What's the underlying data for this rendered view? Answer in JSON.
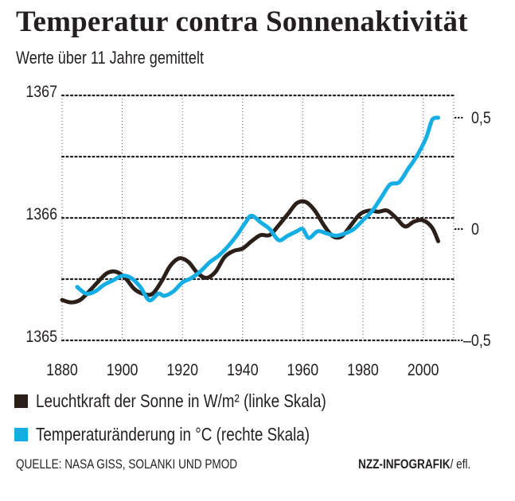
{
  "header": {
    "title": "Temperatur contra Sonnenaktivität",
    "subtitle": "Werte über 11 Jahre gemittelt"
  },
  "legend": [
    {
      "label": "Leuchtkraft der Sonne in W/m² (linke Skala)",
      "color": "#2b2019"
    },
    {
      "label": "Temperaturänderung in °C (rechte Skala)",
      "color": "#14aee5"
    }
  ],
  "footer": {
    "source": "QUELLE:  NASA GISS, SOLANKI UND PMOD",
    "credit_bold": "NZZ-INFOGRAFIK",
    "credit_suffix": "/ efl."
  },
  "chart_data": {
    "type": "line",
    "title": "Temperatur contra Sonnenaktivität",
    "subtitle": "Werte über 11 Jahre gemittelt",
    "xlabel": "",
    "xlim": [
      1880,
      2010
    ],
    "x_ticks": [
      1880,
      1900,
      1920,
      1940,
      1960,
      1980,
      2000
    ],
    "x_tick_labels": [
      "1880",
      "1900",
      "1920",
      "1940",
      "1960",
      "1980",
      "2000"
    ],
    "y_left": {
      "label": "Leuchtkraft der Sonne in W/m²",
      "lim": [
        1365,
        1367
      ],
      "ticks": [
        1365,
        1366,
        1367
      ],
      "tick_labels": [
        "1365",
        "1366",
        "1367"
      ],
      "gridlines": [
        1365,
        1365.5,
        1366,
        1366.5,
        1367
      ]
    },
    "y_right": {
      "label": "Temperaturänderung in °C",
      "lim": [
        -0.5,
        0.5
      ],
      "ticks": [
        -0.5,
        0,
        0.5
      ],
      "tick_labels": [
        "–0,5",
        "0",
        "0,5"
      ]
    },
    "grid": true,
    "legend_position": "bottom",
    "series": [
      {
        "name": "Leuchtkraft der Sonne in W/m² (linke Skala)",
        "axis": "left",
        "color": "#2b2019",
        "x": [
          1880,
          1883,
          1886,
          1889,
          1892,
          1895,
          1898,
          1901,
          1904,
          1907,
          1910,
          1913,
          1916,
          1919,
          1922,
          1925,
          1928,
          1931,
          1934,
          1937,
          1940,
          1943,
          1946,
          1949,
          1952,
          1955,
          1958,
          1961,
          1964,
          1967,
          1970,
          1973,
          1976,
          1979,
          1982,
          1985,
          1988,
          1991,
          1994,
          1997,
          2000,
          2003,
          2005
        ],
        "values": [
          1365.33,
          1365.31,
          1365.33,
          1365.4,
          1365.48,
          1365.55,
          1365.56,
          1365.51,
          1365.42,
          1365.38,
          1365.38,
          1365.48,
          1365.61,
          1365.67,
          1365.64,
          1365.55,
          1365.51,
          1365.56,
          1365.68,
          1365.73,
          1365.75,
          1365.81,
          1365.86,
          1365.86,
          1365.94,
          1366.03,
          1366.12,
          1366.13,
          1366.06,
          1365.94,
          1365.85,
          1365.85,
          1365.94,
          1366.03,
          1366.06,
          1366.05,
          1366.06,
          1366.0,
          1365.93,
          1365.97,
          1365.98,
          1365.92,
          1365.81
        ]
      },
      {
        "name": "Temperaturänderung in °C (rechte Skala)",
        "axis": "right",
        "color": "#14aee5",
        "x": [
          1885,
          1888,
          1891,
          1894,
          1897,
          1900,
          1903,
          1906,
          1909,
          1912,
          1914,
          1917,
          1920,
          1923,
          1926,
          1929,
          1932,
          1935,
          1938,
          1941,
          1943,
          1946,
          1949,
          1952,
          1955,
          1958,
          1960,
          1962,
          1965,
          1968,
          1971,
          1974,
          1977,
          1980,
          1983,
          1986,
          1989,
          1992,
          1995,
          1998,
          2001,
          2003,
          2005
        ],
        "values": [
          -0.26,
          -0.29,
          -0.28,
          -0.25,
          -0.23,
          -0.21,
          -0.22,
          -0.26,
          -0.32,
          -0.29,
          -0.3,
          -0.28,
          -0.24,
          -0.22,
          -0.19,
          -0.15,
          -0.12,
          -0.08,
          -0.03,
          0.03,
          0.06,
          0.03,
          0.0,
          -0.05,
          -0.03,
          -0.01,
          0.0,
          -0.04,
          -0.01,
          -0.02,
          -0.03,
          -0.02,
          0.0,
          0.04,
          0.08,
          0.14,
          0.2,
          0.21,
          0.27,
          0.33,
          0.41,
          0.49,
          0.5
        ]
      }
    ]
  }
}
